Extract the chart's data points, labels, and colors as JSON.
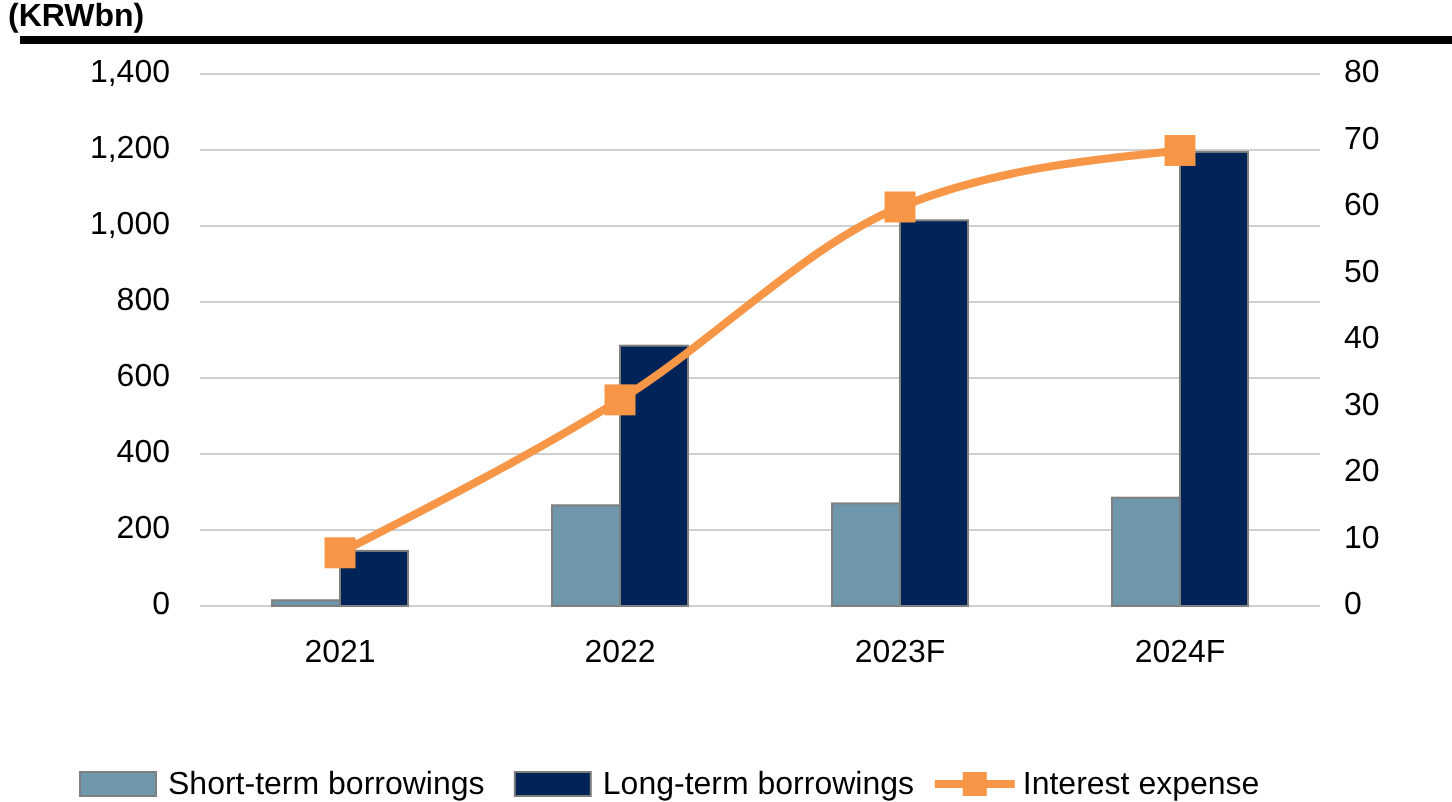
{
  "chart_data": {
    "type": "bar",
    "title": "(KRWbn)",
    "categories": [
      "2021",
      "2022",
      "2023F",
      "2024F"
    ],
    "series": [
      {
        "name": "Short-term borrowings",
        "color": "#6e97ab",
        "values": [
          15,
          265,
          270,
          285
        ]
      },
      {
        "name": "Long-term borrowings",
        "color": "#002457",
        "values": [
          145,
          685,
          1015,
          1195
        ]
      },
      {
        "name": "Interest expense",
        "type": "line",
        "axis": "y2",
        "color": "#f79646",
        "marker": "square",
        "values": [
          8,
          31,
          60,
          68.5
        ]
      }
    ],
    "ylim": [
      0,
      1400
    ],
    "yticks": [
      {
        "value": 0,
        "label": "0"
      },
      {
        "value": 200,
        "label": "200"
      },
      {
        "value": 400,
        "label": "400"
      },
      {
        "value": 600,
        "label": "600"
      },
      {
        "value": 800,
        "label": "800"
      },
      {
        "value": 1000,
        "label": "1,000"
      },
      {
        "value": 1200,
        "label": "1,200"
      },
      {
        "value": 1400,
        "label": "1,400"
      }
    ],
    "y2lim": [
      0,
      80
    ],
    "y2ticks": [
      0,
      10,
      20,
      30,
      40,
      50,
      60,
      70,
      80
    ],
    "grid": "y",
    "legend": "bottom"
  }
}
